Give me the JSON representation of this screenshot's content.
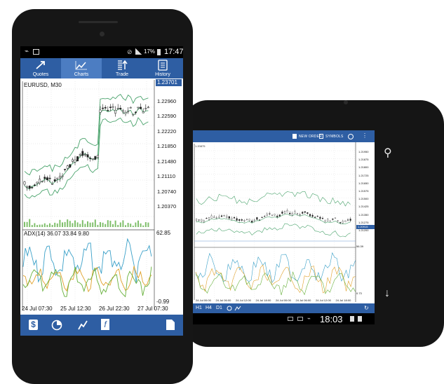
{
  "phone": {
    "status_time": "17:47",
    "battery": "17%",
    "tabs": [
      {
        "label": "Quotes",
        "icon": "quotes-icon",
        "active": false
      },
      {
        "label": "Charts",
        "icon": "charts-icon",
        "active": true
      },
      {
        "label": "Trade",
        "icon": "trade-icon",
        "active": false
      },
      {
        "label": "History",
        "icon": "history-icon",
        "active": false
      }
    ],
    "chart": {
      "symbol": "EURUSD, M30",
      "current_price": "1.23701",
      "price_ticks": [
        "1.23701",
        "1.22960",
        "1.22590",
        "1.22220",
        "1.21850",
        "1.21480",
        "1.21110",
        "1.20740",
        "1.20370"
      ],
      "indicator_label": "ADX(14) 36.07 33.84 9.80",
      "indicator_max": "62.85",
      "indicator_min": "-0.99",
      "time_ticks": [
        "24 Jul 07:30",
        "25 Jul 12:30",
        "26 Jul 22:30",
        "27 Jul 07:30"
      ]
    },
    "bottom_icons": [
      "dollar-icon",
      "pie-icon",
      "indicator-icon",
      "function-icon",
      "objects-icon"
    ]
  },
  "tablet": {
    "status_time": "18:03",
    "actions": {
      "new_order": "NEW ORDER",
      "symbols": "SYMBOLS"
    },
    "chart": {
      "symbol": "1.20875",
      "current_price": "1.20915",
      "price_ticks": [
        "1.21950",
        "1.21875",
        "1.21800",
        "1.21725",
        "1.21650",
        "1.21575",
        "1.21500",
        "1.21425",
        "1.21350",
        "1.21275",
        "1.21200"
      ],
      "indicator_max": "56.39",
      "indicator_min": "0.73",
      "time_ticks": [
        "24 Jul 00:00",
        "24 Jul 06:00",
        "24 Jul 12:00",
        "24 Jul 18:00",
        "24 Jul 00:00",
        "24 Jul 06:00",
        "24 Jul 12:00",
        "24 Jul 18:00"
      ]
    },
    "timeframes": [
      "H1",
      "H4",
      "D1"
    ]
  }
}
